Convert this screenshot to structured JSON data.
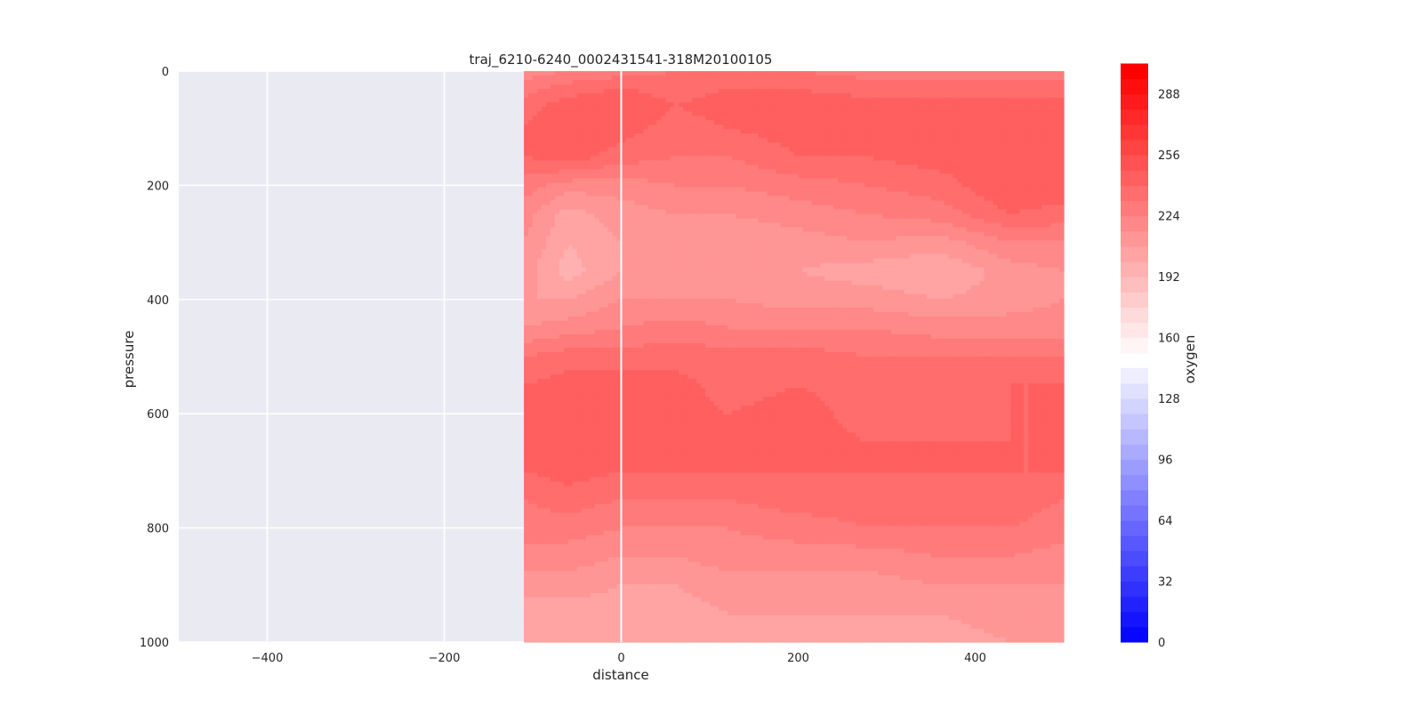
{
  "chart_data": {
    "type": "heatmap",
    "subtype": "filled-contour",
    "title": "traj_6210-6240_0002431541-318M20100105",
    "xlabel": "distance",
    "ylabel": "pressure",
    "xlim": [
      -500,
      500
    ],
    "ylim": [
      1000,
      0
    ],
    "y_inverted": true,
    "xticks": [
      -400,
      -200,
      0,
      200,
      400
    ],
    "xtick_labels": [
      "−400",
      "−200",
      "0",
      "200",
      "400"
    ],
    "yticks": [
      0,
      200,
      400,
      600,
      800,
      1000
    ],
    "ytick_labels": [
      "0",
      "200",
      "400",
      "600",
      "800",
      "1000"
    ],
    "grid": true,
    "background": "#eaeaf2",
    "data_x_extent": [
      -110,
      500
    ],
    "reference_line_x": 0,
    "colorbar": {
      "label": "oxygen",
      "vmin": 0,
      "vmax": 300,
      "ticks": [
        0,
        32,
        64,
        96,
        128,
        160,
        192,
        224,
        256,
        288
      ],
      "tick_labels": [
        "0",
        "32",
        "64",
        "96",
        "128",
        "160",
        "192",
        "224",
        "256",
        "288"
      ],
      "gap_range": [
        144,
        152
      ],
      "low_color": "#0000ff",
      "high_color": "#ff0000",
      "mid_color": "#ffffff"
    },
    "x_samples": [
      -110,
      -60,
      0,
      60,
      120,
      200,
      280,
      360,
      440,
      500
    ],
    "pressure_samples": [
      0,
      30,
      60,
      100,
      150,
      200,
      250,
      300,
      350,
      400,
      450,
      500,
      550,
      600,
      650,
      700,
      750,
      800,
      850,
      900,
      950,
      1000
    ],
    "oxygen": [
      [
        220,
        228,
        236,
        240,
        240,
        228,
        220,
        216,
        212,
        208,
        216,
        232,
        240,
        240,
        240,
        240,
        232,
        228,
        220,
        212,
        204,
        200
      ],
      [
        224,
        236,
        244,
        248,
        244,
        220,
        204,
        200,
        196,
        208,
        220,
        236,
        244,
        244,
        244,
        244,
        236,
        228,
        220,
        212,
        204,
        200
      ],
      [
        228,
        240,
        248,
        244,
        236,
        220,
        212,
        208,
        208,
        216,
        224,
        236,
        244,
        244,
        244,
        240,
        232,
        224,
        216,
        208,
        204,
        200
      ],
      [
        232,
        236,
        240,
        236,
        232,
        224,
        216,
        212,
        208,
        216,
        228,
        236,
        244,
        244,
        244,
        240,
        232,
        224,
        216,
        208,
        204,
        204
      ],
      [
        232,
        240,
        244,
        240,
        232,
        224,
        216,
        208,
        208,
        216,
        224,
        236,
        236,
        240,
        240,
        240,
        232,
        224,
        220,
        212,
        208,
        204
      ],
      [
        232,
        240,
        244,
        244,
        240,
        228,
        220,
        212,
        208,
        212,
        224,
        236,
        240,
        244,
        244,
        240,
        236,
        228,
        220,
        212,
        208,
        204
      ],
      [
        228,
        236,
        244,
        244,
        240,
        232,
        224,
        216,
        204,
        212,
        224,
        232,
        236,
        236,
        240,
        240,
        236,
        232,
        220,
        212,
        208,
        204
      ],
      [
        228,
        236,
        244,
        244,
        244,
        236,
        228,
        212,
        200,
        208,
        220,
        232,
        236,
        236,
        240,
        240,
        236,
        232,
        224,
        216,
        208,
        204
      ],
      [
        228,
        236,
        244,
        244,
        244,
        248,
        240,
        224,
        212,
        212,
        220,
        232,
        240,
        240,
        240,
        240,
        236,
        232,
        224,
        216,
        212,
        208
      ],
      [
        228,
        236,
        244,
        244,
        244,
        248,
        236,
        224,
        216,
        216,
        220,
        232,
        240,
        240,
        240,
        240,
        232,
        228,
        220,
        216,
        212,
        208
      ]
    ]
  }
}
